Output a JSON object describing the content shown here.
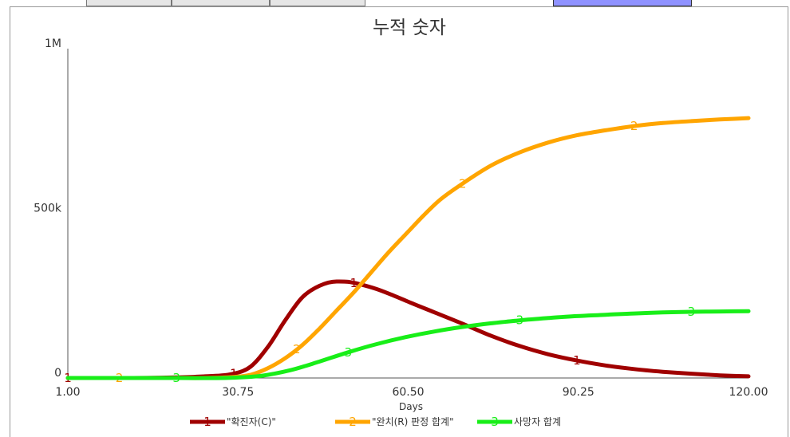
{
  "window": {
    "tabs": [
      "",
      "",
      ""
    ],
    "action_button": ""
  },
  "chart_data": {
    "type": "line",
    "title": "누적 숫자",
    "xlabel": "Days",
    "ylabel": "",
    "xlim": [
      1.0,
      120.0
    ],
    "ylim": [
      0,
      1000000
    ],
    "x_ticks": [
      "1.00",
      "30.75",
      "60.50",
      "90.25",
      "120.00"
    ],
    "y_ticks": [
      "0",
      "500k",
      "1M"
    ],
    "grid": false,
    "legend_position": "bottom",
    "series": [
      {
        "name": "\"확진자(C)\"",
        "marker": "1",
        "color": "#a00000",
        "x": [
          1,
          10,
          20,
          25,
          30,
          33,
          36,
          39,
          42,
          45,
          48,
          50,
          52,
          55,
          58,
          61,
          65,
          70,
          75,
          80,
          85,
          90,
          95,
          100,
          105,
          110,
          115,
          120
        ],
        "y": [
          0,
          0,
          2000,
          5000,
          13000,
          35000,
          95000,
          175000,
          245000,
          280000,
          293000,
          292000,
          285000,
          270000,
          250000,
          228000,
          200000,
          165000,
          128000,
          97000,
          72000,
          53000,
          38000,
          27000,
          19000,
          13000,
          8000,
          5000
        ]
      },
      {
        "name": "\"완치(R) 판정 합계\"",
        "marker": "2",
        "color": "#ffa500",
        "x": [
          1,
          10,
          20,
          30,
          33,
          36,
          39,
          42,
          45,
          48,
          51,
          54,
          57,
          60,
          63,
          66,
          70,
          75,
          80,
          85,
          90,
          95,
          100,
          105,
          110,
          115,
          120
        ],
        "y": [
          0,
          0,
          0,
          3000,
          10000,
          30000,
          60000,
          100000,
          150000,
          205000,
          260000,
          320000,
          380000,
          435000,
          490000,
          540000,
          590000,
          645000,
          685000,
          715000,
          737000,
          752000,
          765000,
          774000,
          780000,
          785000,
          789000
        ]
      },
      {
        "name": "사망자 합계",
        "marker": "3",
        "color": "#18ee18",
        "x": [
          1,
          10,
          20,
          30,
          35,
          40,
          45,
          50,
          55,
          60,
          65,
          70,
          75,
          80,
          85,
          90,
          95,
          100,
          105,
          110,
          115,
          120
        ],
        "y": [
          0,
          0,
          0,
          1000,
          7000,
          24000,
          50000,
          78000,
          103000,
          124000,
          141000,
          155000,
          166000,
          175000,
          182000,
          188000,
          192000,
          196000,
          199000,
          201000,
          202000,
          203000
        ]
      }
    ]
  }
}
